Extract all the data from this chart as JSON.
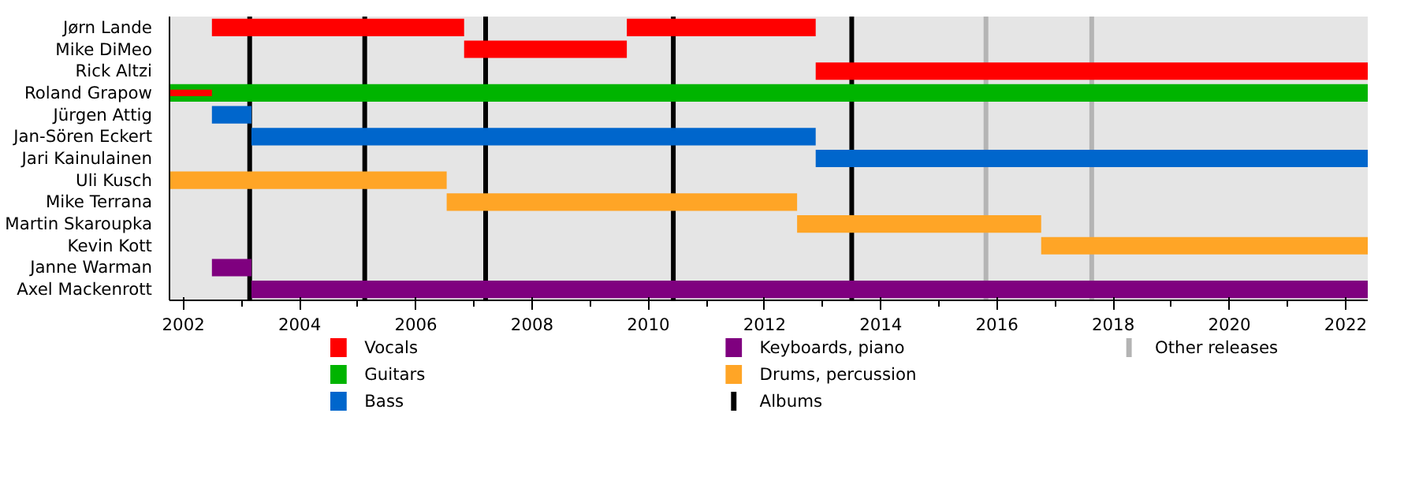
{
  "chart_data": {
    "type": "bar",
    "orientation": "horizontal",
    "categories": [
      "Jørn Lande",
      "Mike DiMeo",
      "Rick Altzi",
      "Roland Grapow",
      "Jürgen Attig",
      "Jan-Sören Eckert",
      "Jari Kainulainen",
      "Uli Kusch",
      "Mike Terrana",
      "Martin Skaroupka",
      "Kevin Kott",
      "Janne Warman",
      "Axel Mackenrott"
    ],
    "series": [
      {
        "name": "Vocals",
        "color": "#ff0000",
        "base": [
          2002.49,
          2006.83,
          2012.88,
          2001.76,
          null,
          null,
          null,
          null,
          null,
          null,
          null,
          null,
          null
        ],
        "values": [
          4.34,
          2.8,
          9.5,
          0.73,
          null,
          null,
          null,
          null,
          null,
          null,
          null,
          null,
          null
        ]
      },
      {
        "color": "#ff0000",
        "base": [
          2009.63,
          null,
          null,
          null,
          null,
          null,
          null,
          null,
          null,
          null,
          null,
          null,
          null
        ],
        "values": [
          3.25,
          null,
          null,
          null,
          null,
          null,
          null,
          null,
          null,
          null,
          null,
          null,
          null
        ]
      },
      {
        "name": "Guitars",
        "color": "#00b400",
        "base": [
          null,
          null,
          null,
          2001.76,
          null,
          null,
          null,
          null,
          null,
          null,
          null,
          null,
          null
        ],
        "values": [
          null,
          null,
          null,
          20.62,
          null,
          null,
          null,
          null,
          null,
          null,
          null,
          null,
          null
        ]
      },
      {
        "name": "Bass",
        "color": "#0066cc",
        "base": [
          null,
          null,
          null,
          null,
          2002.49,
          2003.17,
          2012.88,
          null,
          null,
          null,
          null,
          null,
          null
        ],
        "values": [
          null,
          null,
          null,
          null,
          0.68,
          9.71,
          9.5,
          null,
          null,
          null,
          null,
          null,
          null
        ]
      },
      {
        "name": "Keyboards, piano",
        "color": "#7f007f",
        "base": [
          null,
          null,
          null,
          null,
          null,
          null,
          null,
          null,
          null,
          null,
          null,
          2002.49,
          2003.17
        ],
        "values": [
          null,
          null,
          null,
          null,
          null,
          null,
          null,
          null,
          null,
          null,
          null,
          0.68,
          19.21
        ]
      },
      {
        "name": "Drums, percussion",
        "color": "#ffa526",
        "base": [
          null,
          null,
          null,
          null,
          null,
          null,
          null,
          2001.76,
          2006.53,
          2012.56,
          2016.76,
          null,
          null
        ],
        "values": [
          null,
          null,
          null,
          null,
          null,
          null,
          null,
          4.77,
          6.03,
          4.2,
          5.62,
          null,
          null
        ]
      }
    ],
    "ref_lines": [
      {
        "axis": "x",
        "value": 2003.14,
        "label": "Albums",
        "color": "#000000"
      },
      {
        "axis": "x",
        "value": 2005.12,
        "color": "#000000"
      },
      {
        "axis": "x",
        "value": 2007.2,
        "color": "#000000"
      },
      {
        "axis": "x",
        "value": 2010.43,
        "color": "#000000"
      },
      {
        "axis": "x",
        "value": 2013.5,
        "color": "#000000"
      },
      {
        "axis": "x",
        "value": 2015.81,
        "label": "Other releases",
        "color": "#b4b4b4"
      },
      {
        "axis": "x",
        "value": 2017.63,
        "color": "#b4b4b4"
      }
    ],
    "xlim": [
      2001.76,
      2022.38
    ],
    "xticks": [
      2002,
      2004,
      2006,
      2008,
      2010,
      2012,
      2014,
      2016,
      2018,
      2020,
      2022
    ],
    "legend": "bottom"
  }
}
